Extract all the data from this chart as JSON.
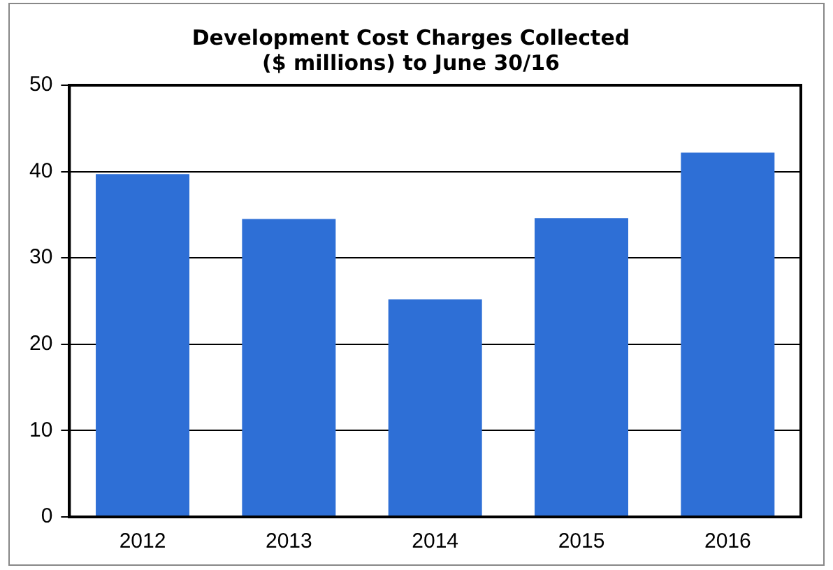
{
  "chart_data": {
    "type": "bar",
    "title": "Development Cost Charges Collected\n($ millions) to June 30/16",
    "categories": [
      "2012",
      "2013",
      "2014",
      "2015",
      "2016"
    ],
    "values": [
      39.7,
      34.5,
      25.2,
      34.6,
      42.2
    ],
    "color": "#2e6fd6",
    "ylim": [
      0,
      50
    ],
    "yticks": [
      0,
      10,
      20,
      30,
      40,
      50
    ],
    "grid": "y",
    "legend": false
  }
}
